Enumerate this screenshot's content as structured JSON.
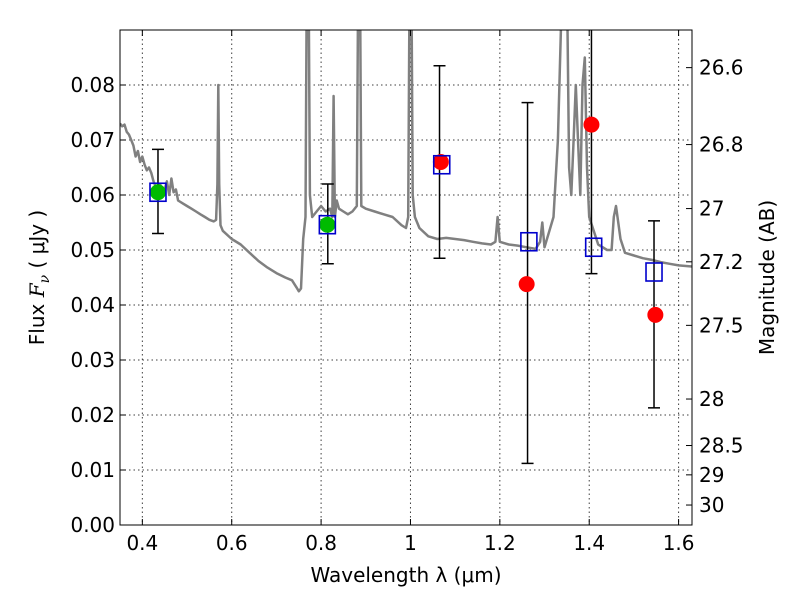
{
  "chart_data": {
    "type": "scatter",
    "title": "",
    "xlabel": "Wavelength  λ (μm)",
    "ylabel": "Flux  F_ν  ( μJy )",
    "ylabel_parts": {
      "prefix": "Flux  ",
      "symbol": "F",
      "subscript": "ν",
      "suffix": "  ( μJy )"
    },
    "y2label": "Magnitude (AB)",
    "xlim": [
      0.35,
      1.63
    ],
    "ylim": [
      0.0,
      0.09
    ],
    "grid": true,
    "x_ticks": [
      {
        "v": 0.4,
        "label": "0.4"
      },
      {
        "v": 0.6,
        "label": "0.6"
      },
      {
        "v": 0.8,
        "label": "0.8"
      },
      {
        "v": 1.0,
        "label": "1"
      },
      {
        "v": 1.2,
        "label": "1.2"
      },
      {
        "v": 1.4,
        "label": "1.4"
      },
      {
        "v": 1.6,
        "label": "1.6"
      }
    ],
    "y_ticks": [
      {
        "v": 0.0,
        "label": "0.00"
      },
      {
        "v": 0.01,
        "label": "0.01"
      },
      {
        "v": 0.02,
        "label": "0.02"
      },
      {
        "v": 0.03,
        "label": "0.03"
      },
      {
        "v": 0.04,
        "label": "0.04"
      },
      {
        "v": 0.05,
        "label": "0.05"
      },
      {
        "v": 0.06,
        "label": "0.06"
      },
      {
        "v": 0.07,
        "label": "0.07"
      },
      {
        "v": 0.08,
        "label": "0.08"
      }
    ],
    "y2_ticks": [
      {
        "label": "26.6"
      },
      {
        "label": "26.8"
      },
      {
        "label": "27"
      },
      {
        "label": "27.2"
      },
      {
        "label": "27.5"
      },
      {
        "label": "28"
      },
      {
        "label": "28.5"
      },
      {
        "label": "29"
      },
      {
        "label": "30"
      }
    ],
    "zero_point_uJy": 3630000000,
    "model_spectrum": {
      "color": "#808080",
      "points": [
        [
          0.35,
          0.073
        ],
        [
          0.355,
          0.0725
        ],
        [
          0.36,
          0.0728
        ],
        [
          0.365,
          0.0715
        ],
        [
          0.37,
          0.071
        ],
        [
          0.375,
          0.07
        ],
        [
          0.38,
          0.069
        ],
        [
          0.385,
          0.067
        ],
        [
          0.39,
          0.068
        ],
        [
          0.395,
          0.066
        ],
        [
          0.4,
          0.067
        ],
        [
          0.405,
          0.0655
        ],
        [
          0.41,
          0.0645
        ],
        [
          0.415,
          0.065
        ],
        [
          0.42,
          0.064
        ],
        [
          0.425,
          0.0625
        ],
        [
          0.43,
          0.0615
        ],
        [
          0.435,
          0.061
        ],
        [
          0.44,
          0.062
        ],
        [
          0.445,
          0.06
        ],
        [
          0.45,
          0.061
        ],
        [
          0.455,
          0.0625
        ],
        [
          0.46,
          0.06
        ],
        [
          0.465,
          0.063
        ],
        [
          0.47,
          0.0605
        ],
        [
          0.475,
          0.061
        ],
        [
          0.48,
          0.059
        ],
        [
          0.49,
          0.0585
        ],
        [
          0.5,
          0.058
        ],
        [
          0.51,
          0.0575
        ],
        [
          0.52,
          0.057
        ],
        [
          0.53,
          0.0565
        ],
        [
          0.54,
          0.056
        ],
        [
          0.55,
          0.0555
        ],
        [
          0.56,
          0.0552
        ],
        [
          0.565,
          0.0555
        ],
        [
          0.568,
          0.062
        ],
        [
          0.57,
          0.08
        ],
        [
          0.572,
          0.062
        ],
        [
          0.575,
          0.0545
        ],
        [
          0.58,
          0.0535
        ],
        [
          0.6,
          0.052
        ],
        [
          0.62,
          0.051
        ],
        [
          0.64,
          0.0495
        ],
        [
          0.66,
          0.048
        ],
        [
          0.68,
          0.0468
        ],
        [
          0.7,
          0.0458
        ],
        [
          0.72,
          0.045
        ],
        [
          0.735,
          0.0445
        ],
        [
          0.745,
          0.0432
        ],
        [
          0.75,
          0.0425
        ],
        [
          0.755,
          0.043
        ],
        [
          0.76,
          0.052
        ],
        [
          0.765,
          0.056
        ],
        [
          0.768,
          0.1
        ],
        [
          0.772,
          0.1
        ],
        [
          0.775,
          0.06
        ],
        [
          0.78,
          0.056
        ],
        [
          0.79,
          0.057
        ],
        [
          0.8,
          0.058
        ],
        [
          0.81,
          0.057
        ],
        [
          0.82,
          0.0575
        ],
        [
          0.825,
          0.056
        ],
        [
          0.828,
          0.078
        ],
        [
          0.831,
          0.056
        ],
        [
          0.835,
          0.059
        ],
        [
          0.84,
          0.0575
        ],
        [
          0.85,
          0.057
        ],
        [
          0.86,
          0.0565
        ],
        [
          0.87,
          0.057
        ],
        [
          0.88,
          0.058
        ],
        [
          0.883,
          0.1
        ],
        [
          0.887,
          0.1
        ],
        [
          0.89,
          0.058
        ],
        [
          0.9,
          0.0575
        ],
        [
          0.92,
          0.057
        ],
        [
          0.94,
          0.0565
        ],
        [
          0.96,
          0.056
        ],
        [
          0.98,
          0.0545
        ],
        [
          0.99,
          0.054
        ],
        [
          0.995,
          0.056
        ],
        [
          0.998,
          0.1
        ],
        [
          1.002,
          0.1
        ],
        [
          1.005,
          0.06
        ],
        [
          1.01,
          0.056
        ],
        [
          1.02,
          0.054
        ],
        [
          1.04,
          0.0525
        ],
        [
          1.06,
          0.052
        ],
        [
          1.08,
          0.0522
        ],
        [
          1.1,
          0.052
        ],
        [
          1.12,
          0.0518
        ],
        [
          1.14,
          0.0515
        ],
        [
          1.16,
          0.0512
        ],
        [
          1.18,
          0.051
        ],
        [
          1.19,
          0.0515
        ],
        [
          1.195,
          0.056
        ],
        [
          1.2,
          0.0515
        ],
        [
          1.22,
          0.051
        ],
        [
          1.24,
          0.0508
        ],
        [
          1.26,
          0.0505
        ],
        [
          1.28,
          0.0502
        ],
        [
          1.29,
          0.0515
        ],
        [
          1.295,
          0.055
        ],
        [
          1.3,
          0.0505
        ],
        [
          1.32,
          0.056
        ],
        [
          1.33,
          0.07
        ],
        [
          1.34,
          0.1
        ],
        [
          1.35,
          0.1
        ],
        [
          1.355,
          0.065
        ],
        [
          1.36,
          0.06
        ],
        [
          1.365,
          0.07
        ],
        [
          1.37,
          0.08
        ],
        [
          1.375,
          0.07
        ],
        [
          1.38,
          0.06
        ],
        [
          1.385,
          0.08
        ],
        [
          1.39,
          0.085
        ],
        [
          1.395,
          0.065
        ],
        [
          1.4,
          0.056
        ],
        [
          1.42,
          0.051
        ],
        [
          1.44,
          0.05
        ],
        [
          1.45,
          0.05
        ],
        [
          1.455,
          0.056
        ],
        [
          1.46,
          0.058
        ],
        [
          1.47,
          0.052
        ],
        [
          1.48,
          0.0495
        ],
        [
          1.5,
          0.049
        ],
        [
          1.52,
          0.0485
        ],
        [
          1.54,
          0.0482
        ],
        [
          1.56,
          0.0478
        ],
        [
          1.58,
          0.0475
        ],
        [
          1.6,
          0.0472
        ],
        [
          1.63,
          0.047
        ]
      ]
    },
    "series": [
      {
        "marker": "open-square",
        "color": "#0000cc",
        "points": [
          {
            "x": 0.435,
            "y": 0.0605
          },
          {
            "x": 0.814,
            "y": 0.0546
          },
          {
            "x": 1.07,
            "y": 0.0655
          },
          {
            "x": 1.265,
            "y": 0.0515
          },
          {
            "x": 1.41,
            "y": 0.0505
          },
          {
            "x": 1.545,
            "y": 0.046
          }
        ]
      },
      {
        "marker": "filled-circle",
        "color": "#00bb00",
        "points": [
          {
            "x": 0.435,
            "y": 0.0605
          },
          {
            "x": 0.814,
            "y": 0.0546
          }
        ]
      },
      {
        "marker": "filled-circle",
        "color": "#ff0000",
        "points": [
          {
            "x": 1.068,
            "y": 0.066
          },
          {
            "x": 1.26,
            "y": 0.0438
          },
          {
            "x": 1.405,
            "y": 0.0728
          },
          {
            "x": 1.548,
            "y": 0.0382
          }
        ]
      }
    ],
    "errorbars": [
      {
        "x": 0.435,
        "y_low": 0.053,
        "y_high": 0.0683
      },
      {
        "x": 0.815,
        "y_low": 0.0475,
        "y_high": 0.062
      },
      {
        "x": 1.065,
        "y_low": 0.0485,
        "y_high": 0.0835
      },
      {
        "x": 1.262,
        "y_low": 0.0112,
        "y_high": 0.0768
      },
      {
        "x": 1.405,
        "y_low": 0.0457,
        "y_high": 0.1
      },
      {
        "x": 1.545,
        "y_low": 0.0213,
        "y_high": 0.0553
      }
    ]
  }
}
